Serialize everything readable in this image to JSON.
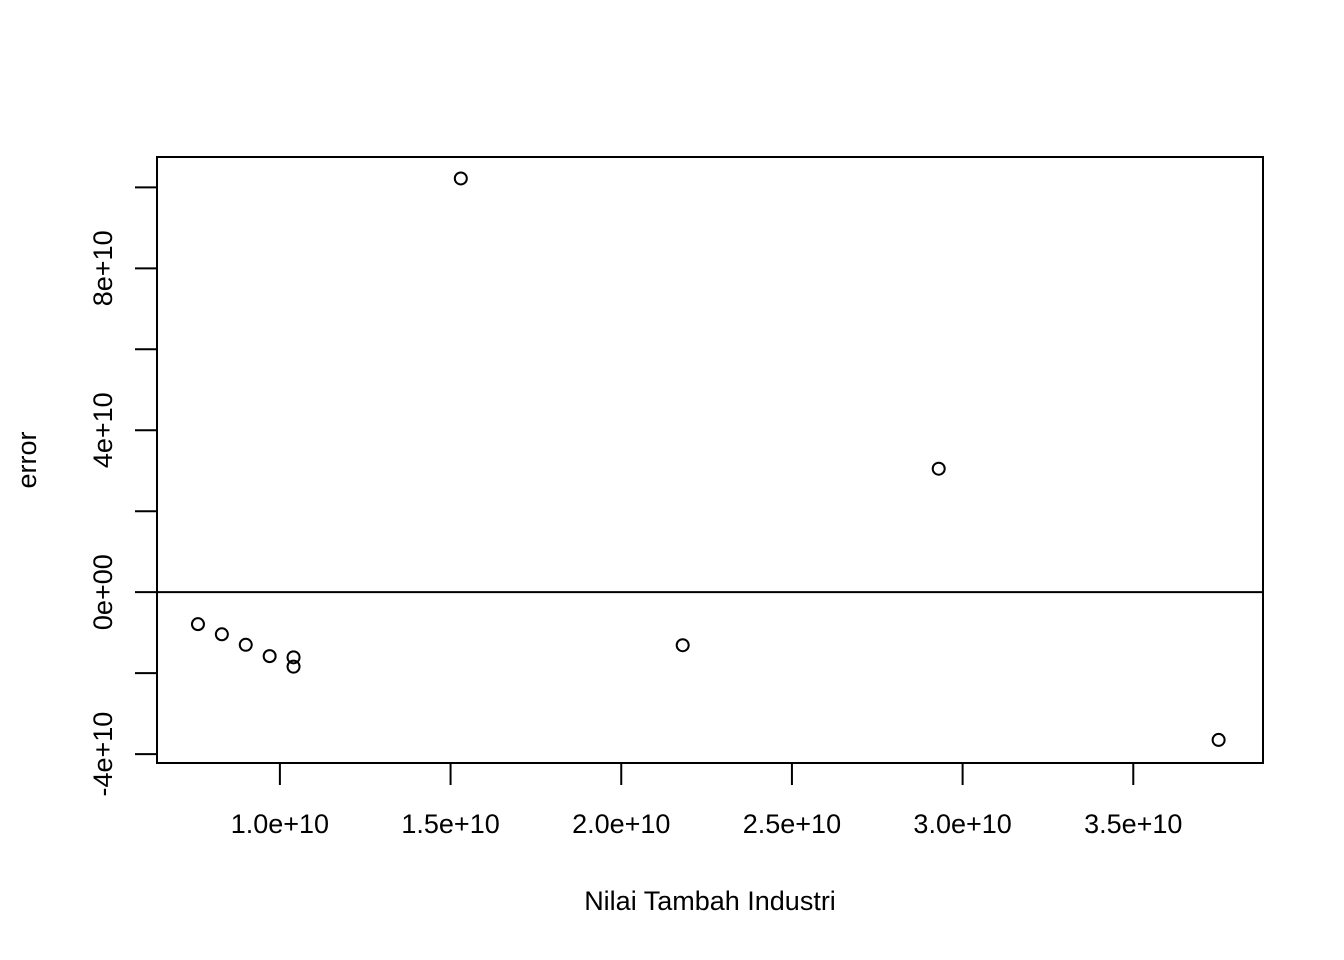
{
  "chart_data": {
    "type": "scatter",
    "title": "",
    "xlabel": "Nilai Tambah Industri",
    "ylabel": "error",
    "xlim": [
      6400000000.0,
      38800000000.0
    ],
    "ylim": [
      -42200000000.0,
      107500000000.0
    ],
    "x_ticks": [
      10000000000.0,
      15000000000.0,
      20000000000.0,
      25000000000.0,
      30000000000.0,
      35000000000.0
    ],
    "x_tick_labels": [
      "1.0e+10",
      "1.5e+10",
      "2.0e+10",
      "2.5e+10",
      "3.0e+10",
      "3.5e+10"
    ],
    "y_ticks_labeled": [
      -40000000000.0,
      0,
      40000000000.0,
      80000000000.0
    ],
    "y_tick_labels": [
      "-4e+10",
      "0e+00",
      "4e+10",
      "8e+10"
    ],
    "y_ticks_all": [
      -40000000000.0,
      -20000000000.0,
      0,
      20000000000.0,
      40000000000.0,
      60000000000.0,
      80000000000.0,
      100000000000.0
    ],
    "hline": 0,
    "grid": false,
    "legend": "none",
    "points": [
      {
        "x": 7600000000.0,
        "y": -7900000000.0
      },
      {
        "x": 8300000000.0,
        "y": -10400000000.0
      },
      {
        "x": 9000000000.0,
        "y": -13000000000.0
      },
      {
        "x": 9700000000.0,
        "y": -15800000000.0
      },
      {
        "x": 10400000000.0,
        "y": -16100000000.0
      },
      {
        "x": 10400000000.0,
        "y": -18400000000.0
      },
      {
        "x": 15300000000.0,
        "y": 102200000000.0
      },
      {
        "x": 21800000000.0,
        "y": -13100000000.0
      },
      {
        "x": 29300000000.0,
        "y": 30500000000.0
      },
      {
        "x": 37500000000.0,
        "y": -36500000000.0
      }
    ]
  }
}
